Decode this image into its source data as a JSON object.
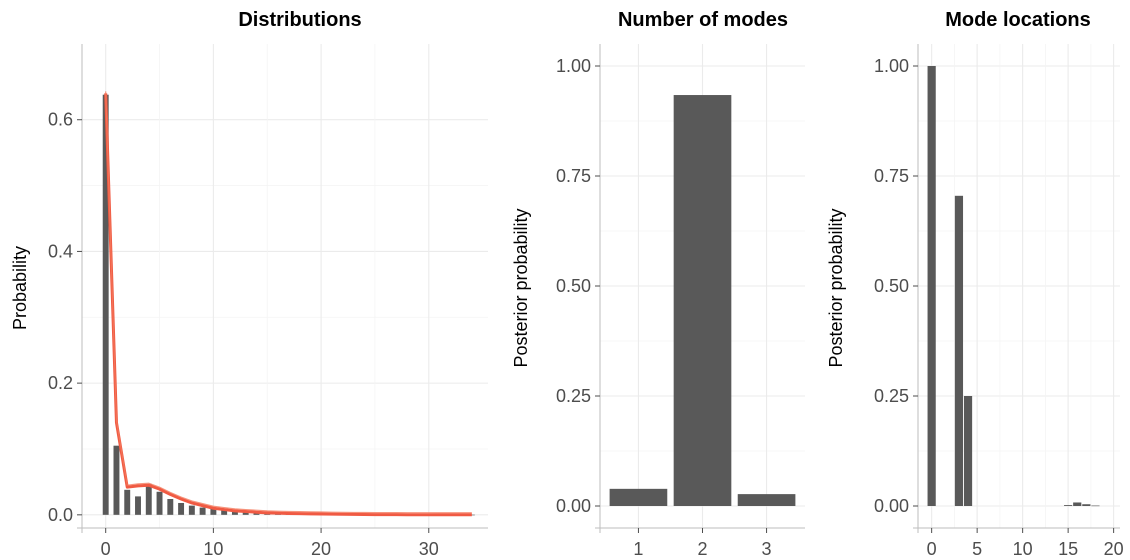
{
  "colors": {
    "bar": "#595959",
    "curve": "#f05a43",
    "grid": "#ebebeb"
  },
  "chart_data": [
    {
      "type": "bar",
      "title": "Distributions",
      "xlabel": "",
      "ylabel": "Probability",
      "xlim": [
        -2.2,
        35.5
      ],
      "ylim": [
        -0.02,
        0.715
      ],
      "xticks": [
        0,
        10,
        20,
        30
      ],
      "yticks": [
        0.0,
        0.2,
        0.4,
        0.6
      ],
      "ytick_labels": [
        "0.0",
        "0.2",
        "0.4",
        "0.6"
      ],
      "grid": true,
      "x": [
        0,
        1,
        2,
        3,
        4,
        5,
        6,
        7,
        8,
        9,
        10,
        11,
        12,
        13,
        14,
        15,
        16,
        17,
        18,
        19,
        20,
        21,
        22,
        23,
        24,
        25,
        26,
        27,
        28,
        29,
        30,
        31,
        32,
        33,
        34
      ],
      "values": [
        0.638,
        0.105,
        0.038,
        0.028,
        0.047,
        0.035,
        0.024,
        0.018,
        0.014,
        0.011,
        0.009,
        0.007,
        0.006,
        0.005,
        0.004,
        0.003,
        0.003,
        0.002,
        0.002,
        0.002,
        0.0015,
        0.0012,
        0.001,
        0.001,
        0.0008,
        0.0007,
        0.0006,
        0.0005,
        0.0004,
        0.0004,
        0.0003,
        0.0003,
        0.0002,
        0.0002,
        0.0002
      ],
      "curve": {
        "x": [
          0,
          1,
          2,
          3,
          4,
          5,
          6,
          7,
          8,
          9,
          10,
          11,
          12,
          13,
          14,
          15,
          16,
          17,
          18,
          19,
          20,
          21,
          22,
          23,
          24,
          25,
          26,
          27,
          28,
          29,
          30,
          31,
          32,
          33,
          34
        ],
        "y": [
          0.64,
          0.14,
          0.042,
          0.044,
          0.045,
          0.039,
          0.031,
          0.024,
          0.018,
          0.014,
          0.01,
          0.008,
          0.006,
          0.005,
          0.004,
          0.003,
          0.0025,
          0.002,
          0.0018,
          0.0015,
          0.0013,
          0.001,
          0.0008,
          0.0006,
          0.0005,
          0.0004,
          0.0003,
          0.0003,
          0.0002,
          0.0002,
          0.0002,
          0.0001,
          0.0001,
          0.0001,
          0.0001
        ]
      }
    },
    {
      "type": "bar",
      "title": "Number of modes",
      "xlabel": "",
      "ylabel": "Posterior probability",
      "xlim": [
        0.4,
        3.6
      ],
      "ylim": [
        -0.05,
        1.05
      ],
      "categories": [
        "1",
        "2",
        "3"
      ],
      "values": [
        0.039,
        0.934,
        0.027
      ],
      "yticks": [
        0.0,
        0.25,
        0.5,
        0.75,
        1.0
      ],
      "ytick_labels": [
        "0.00",
        "0.25",
        "0.50",
        "0.75",
        "1.00"
      ],
      "grid": true
    },
    {
      "type": "bar",
      "title": "Mode locations",
      "xlabel": "",
      "ylabel": "Posterior probability",
      "xlim": [
        -1.5,
        20.7
      ],
      "ylim": [
        -0.05,
        1.05
      ],
      "xticks": [
        0,
        5,
        10,
        15,
        20
      ],
      "yticks": [
        0.0,
        0.25,
        0.5,
        0.75,
        1.0
      ],
      "ytick_labels": [
        "0.00",
        "0.25",
        "0.50",
        "0.75",
        "1.00"
      ],
      "grid": true,
      "x": [
        0,
        3,
        4,
        15,
        16,
        17,
        18
      ],
      "values": [
        1.0,
        0.705,
        0.25,
        0.002,
        0.008,
        0.004,
        0.001
      ]
    }
  ]
}
